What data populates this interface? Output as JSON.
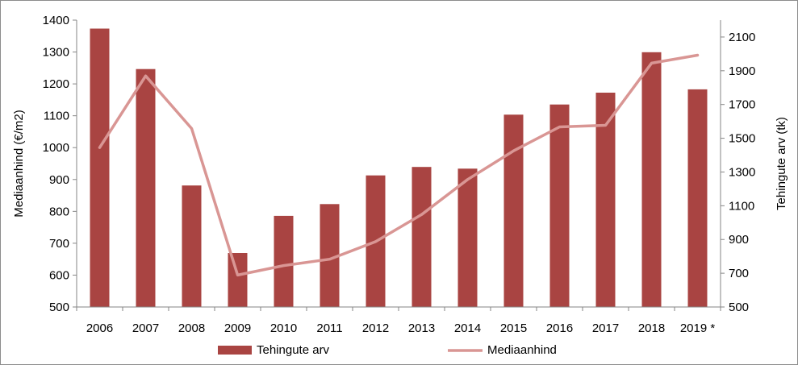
{
  "chart_data": {
    "type": "bar",
    "categories": [
      "2006",
      "2007",
      "2008",
      "2009",
      "2010",
      "2011",
      "2012",
      "2013",
      "2014",
      "2015",
      "2016",
      "2017",
      "2018",
      "2019 *"
    ],
    "series": [
      {
        "name": "Tehingute arv",
        "type": "bar",
        "axis": "right",
        "color": "#a94442",
        "values": [
          2150,
          1910,
          1220,
          820,
          1040,
          1110,
          1280,
          1330,
          1320,
          1640,
          1700,
          1770,
          2010,
          1790
        ]
      },
      {
        "name": "Mediaanhind",
        "type": "line",
        "axis": "left",
        "color": "#d99694",
        "values": [
          1000,
          1225,
          1060,
          600,
          630,
          650,
          705,
          790,
          900,
          990,
          1065,
          1070,
          1265,
          1290
        ]
      }
    ],
    "y_left": {
      "label": "Mediaanhind (€/m2)",
      "range": [
        500,
        1400
      ],
      "ticks": [
        "500",
        "600",
        "700",
        "800",
        "900",
        "1000",
        "1100",
        "1200",
        "1300",
        "1400"
      ]
    },
    "y_right": {
      "label": "Tehingute arv (tk)",
      "range": [
        500,
        2200
      ],
      "ticks": [
        "500",
        "700",
        "900",
        "1100",
        "1300",
        "1500",
        "1700",
        "1900",
        "2100"
      ]
    },
    "grid": false,
    "legend_position": "bottom"
  }
}
